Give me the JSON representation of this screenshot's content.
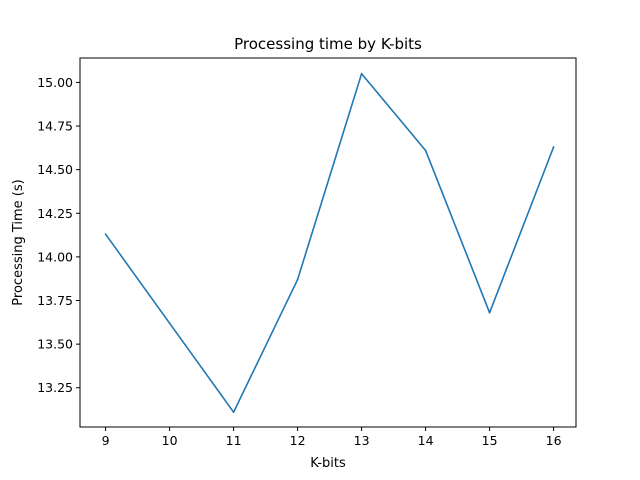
{
  "chart_data": {
    "type": "line",
    "title": "Processing time by K-bits",
    "xlabel": "K-bits",
    "ylabel": "Processing Time (s)",
    "x": [
      9,
      10,
      11,
      12,
      13,
      14,
      15,
      16
    ],
    "series": [
      {
        "values": [
          14.13,
          13.62,
          13.11,
          13.87,
          15.05,
          14.61,
          13.68,
          14.63
        ],
        "color": "#1f77b4"
      }
    ],
    "xlim": [
      8.6,
      16.35
    ],
    "ylim": [
      13.025,
      15.14
    ],
    "xticks": [
      9,
      10,
      11,
      12,
      13,
      14,
      15,
      16
    ],
    "xtick_labels": [
      "9",
      "10",
      "11",
      "12",
      "13",
      "14",
      "15",
      "16"
    ],
    "yticks": [
      13.25,
      13.5,
      13.75,
      14.0,
      14.25,
      14.5,
      14.75,
      15.0
    ],
    "ytick_labels": [
      "13.25",
      "13.50",
      "13.75",
      "14.00",
      "14.25",
      "14.50",
      "14.75",
      "15.00"
    ],
    "grid": false,
    "legend": false
  }
}
